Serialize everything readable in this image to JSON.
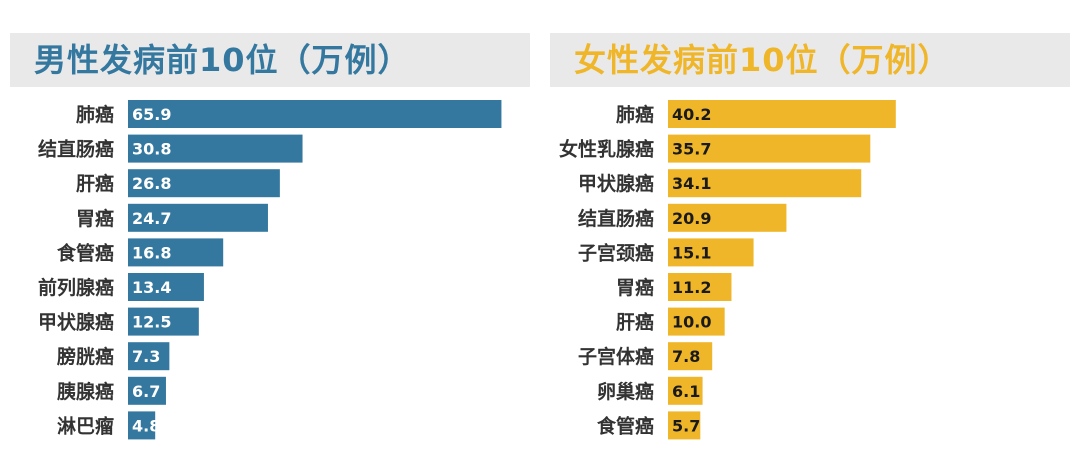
{
  "chart_data": [
    {
      "type": "bar",
      "orientation": "horizontal",
      "title": "男性发病前10位（万例）",
      "categories": [
        "肺癌",
        "结直肠癌",
        "肝癌",
        "胃癌",
        "食管癌",
        "前列腺癌",
        "甲状腺癌",
        "膀胱癌",
        "胰腺癌",
        "淋巴瘤"
      ],
      "values": [
        65.9,
        30.8,
        26.8,
        24.7,
        16.8,
        13.4,
        12.5,
        7.3,
        6.7,
        4.8
      ],
      "value_labels": [
        "65.9",
        "30.8",
        "26.8",
        "24.7",
        "16.8",
        "13.4",
        "12.5",
        "7.3",
        "6.7",
        "4.8"
      ],
      "xlim": [
        0,
        66
      ],
      "grid": false,
      "colors": {
        "bar": "#34789f",
        "title": "#34789f",
        "value_text": "#ffffff"
      }
    },
    {
      "type": "bar",
      "orientation": "horizontal",
      "title": "女性发病前10位（万例）",
      "categories": [
        "肺癌",
        "女性乳腺癌",
        "甲状腺癌",
        "结直肠癌",
        "子宫颈癌",
        "胃癌",
        "肝癌",
        "子宫体癌",
        "卵巢癌",
        "食管癌"
      ],
      "values": [
        40.2,
        35.7,
        34.1,
        20.9,
        15.1,
        11.2,
        10.0,
        7.8,
        6.1,
        5.7
      ],
      "value_labels": [
        "40.2",
        "35.7",
        "34.1",
        "20.9",
        "15.1",
        "11.2",
        "10.0",
        "7.8",
        "6.1",
        "5.7"
      ],
      "xlim": [
        0,
        66
      ],
      "grid": false,
      "colors": {
        "bar": "#f0b62a",
        "title": "#f0b62a",
        "value_text": "#1a1a1a"
      }
    }
  ]
}
